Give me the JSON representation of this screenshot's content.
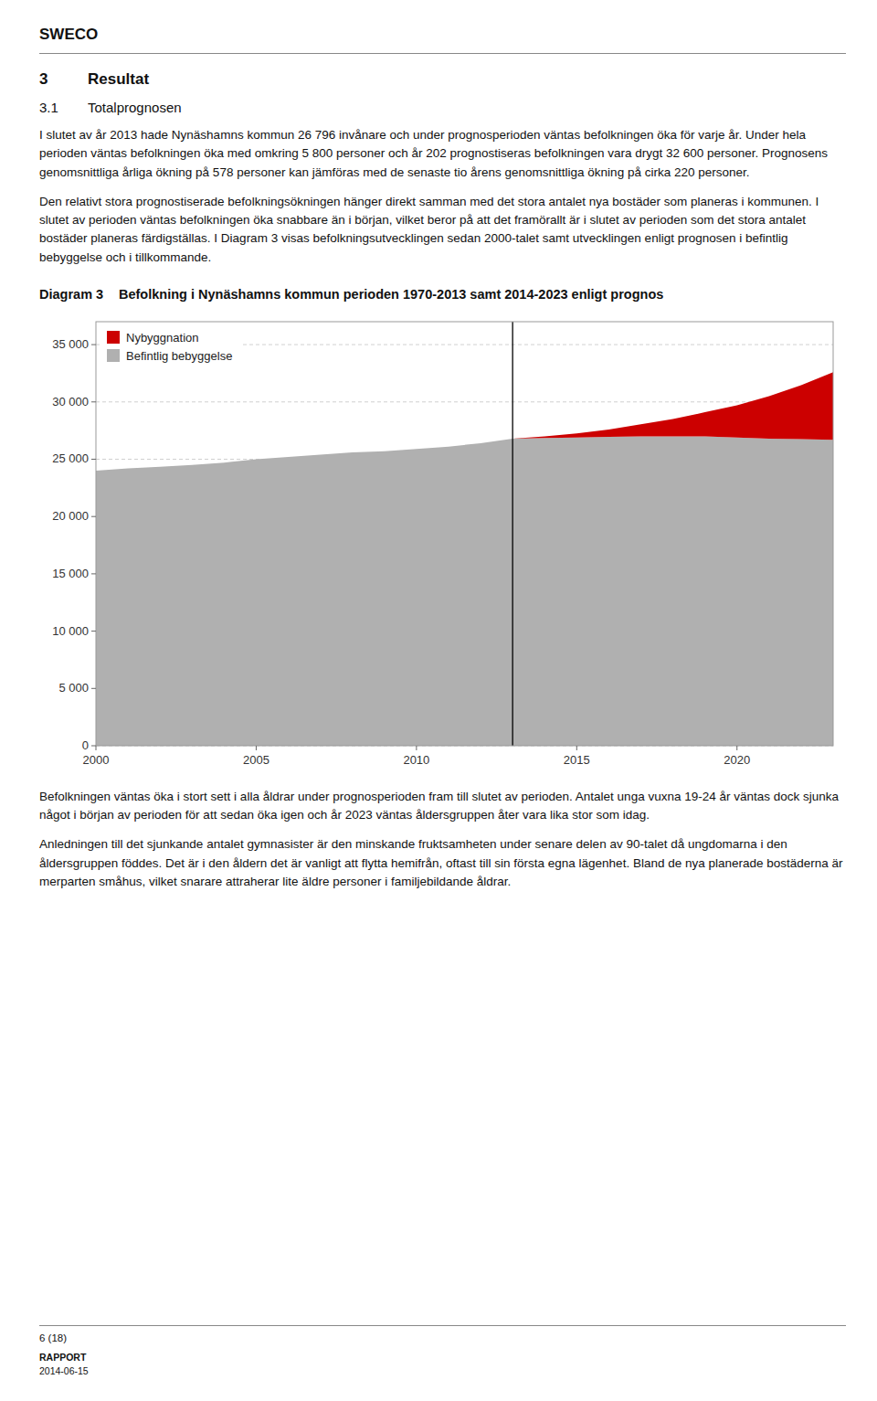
{
  "page": {
    "header": "SWECO",
    "section_number": "3",
    "section_title": "Resultat",
    "subsection_number": "3.1",
    "subsection_title": "Totalprognosen",
    "paragraphs_before": [
      "I slutet av år 2013 hade Nynäshamns kommun 26 796 invånare och under prognosperioden väntas befolkningen öka för varje år. Under hela perioden väntas befolkningen öka med omkring 5 800 personer och år 202 prognostiseras befolkningen vara drygt 32 600 personer. Prognosens genomsnittliga årliga ökning på 578 personer kan jämföras med de senaste tio årens genomsnittliga ökning på cirka 220 personer.",
      "Den relativt stora prognostiserade befolkningsökningen hänger direkt samman med det stora antalet nya bostäder som planeras i kommunen. I slutet av perioden väntas befolkningen öka snabbare än i början, vilket beror på att det framörallt är i slutet av perioden som det stora antalet bostäder planeras färdigställas. I Diagram 3 visas befolkningsutvecklingen sedan 2000-talet samt utvecklingen enligt prognosen i befintlig bebyggelse och i tillkommande."
    ],
    "diagram_label": "Diagram 3",
    "paragraphs_after": [
      "Befolkningen väntas öka i stort sett i alla åldrar under prognosperioden fram till slutet av perioden. Antalet unga vuxna 19-24 år väntas dock sjunka något i början av perioden för att sedan öka igen och år 2023 väntas åldersgruppen åter vara lika stor som idag.",
      "Anledningen till det sjunkande antalet gymnasister är den minskande fruktsamheten under senare delen av 90-talet då ungdomarna i den åldersgruppen föddes. Det är i den åldern det är vanligt att flytta hemifrån, oftast till sin första egna lägenhet. Bland de nya planerade bostäderna är merparten småhus, vilket snarare attraherar lite äldre personer i familjebildande åldrar."
    ],
    "footer_page": "6 (18)",
    "footer_label": "RAPPORT",
    "footer_date": "2014-06-15"
  },
  "chart_data": {
    "type": "area",
    "title": "Befolkning i Nynäshamns kommun perioden 1970-2013 samt 2014-2023 enligt prognos",
    "stacked": true,
    "x": [
      2000,
      2001,
      2002,
      2003,
      2004,
      2005,
      2006,
      2007,
      2008,
      2009,
      2010,
      2011,
      2012,
      2013,
      2014,
      2015,
      2016,
      2017,
      2018,
      2019,
      2020,
      2021,
      2022,
      2023
    ],
    "series": [
      {
        "name": "Befintlig bebyggelse",
        "color": "#b0b0b0",
        "values": [
          24000,
          24200,
          24350,
          24500,
          24700,
          25000,
          25200,
          25400,
          25600,
          25700,
          25900,
          26100,
          26400,
          26796,
          26850,
          26900,
          26950,
          27000,
          27000,
          27000,
          26900,
          26800,
          26750,
          26700
        ]
      },
      {
        "name": "Nybyggnation",
        "color": "#cc0000",
        "values": [
          null,
          null,
          null,
          null,
          null,
          null,
          null,
          null,
          null,
          null,
          null,
          null,
          null,
          0,
          150,
          350,
          650,
          1050,
          1500,
          2100,
          2800,
          3700,
          4700,
          5900
        ]
      }
    ],
    "reference_lines": [
      {
        "x": 2013,
        "color": "#000000"
      }
    ],
    "xlim": [
      2000,
      2023
    ],
    "xticks": [
      2000,
      2005,
      2010,
      2015,
      2020
    ],
    "ylim": [
      0,
      37000
    ],
    "yticks": [
      0,
      {
        "value": 5000,
        "label": "5 000"
      },
      {
        "value": 10000,
        "label": "10 000"
      },
      {
        "value": 15000,
        "label": "15 000"
      },
      {
        "value": 20000,
        "label": "20 000"
      },
      {
        "value": 25000,
        "label": "25 000"
      },
      {
        "value": 30000,
        "label": "30 000"
      },
      {
        "value": 35000,
        "label": "35 000"
      }
    ],
    "grid": true,
    "legend": "upper-left"
  }
}
